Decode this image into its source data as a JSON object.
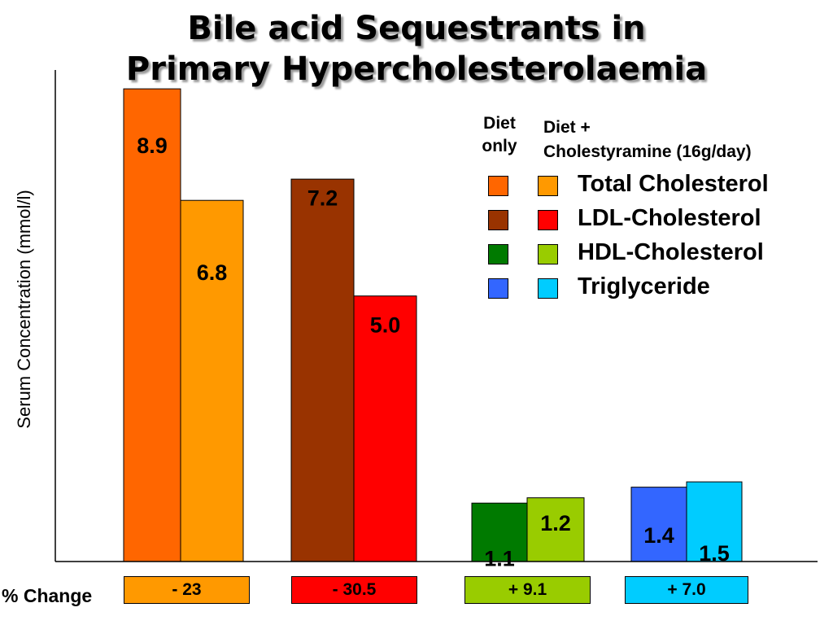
{
  "title": {
    "line1": "Bile acid Sequestrants in",
    "line2": "Primary Hypercholesterolaemia"
  },
  "chart_data": {
    "type": "bar",
    "ylabel": "Serum Concentration (mmol/l)",
    "ylim": [
      0,
      9.5
    ],
    "grid": false,
    "legend_placement": "top-right",
    "legend_headers": {
      "diet_only": [
        "Diet",
        "only"
      ],
      "diet_plus": [
        "Diet +",
        "Cholestyramine (16g/day)"
      ]
    },
    "series": [
      {
        "values": [
          8.9,
          7.2,
          1.1,
          1.4
        ],
        "labels": [
          "8.9",
          "7.2",
          "1.1",
          "1.4"
        ],
        "colors": [
          "#ff6600",
          "#993300",
          "#007a00",
          "#3366ff"
        ]
      },
      {
        "values": [
          6.8,
          5.0,
          1.2,
          1.5
        ],
        "labels": [
          "6.8",
          "5.0",
          "1.2",
          "1.5"
        ],
        "colors": [
          "#ff9900",
          "#ff0000",
          "#99cc00",
          "#00ccff"
        ]
      }
    ],
    "categories": [
      "Total Cholesterol",
      "LDL-Cholesterol",
      "HDL-Cholesterol",
      "Triglyceride"
    ],
    "percent_change": {
      "label": "% Change",
      "values": [
        "- 23",
        "- 30.5",
        "+ 9.1",
        "+ 7.0"
      ],
      "colors": [
        "#ff9900",
        "#ff0000",
        "#99cc00",
        "#00ccff"
      ]
    }
  }
}
